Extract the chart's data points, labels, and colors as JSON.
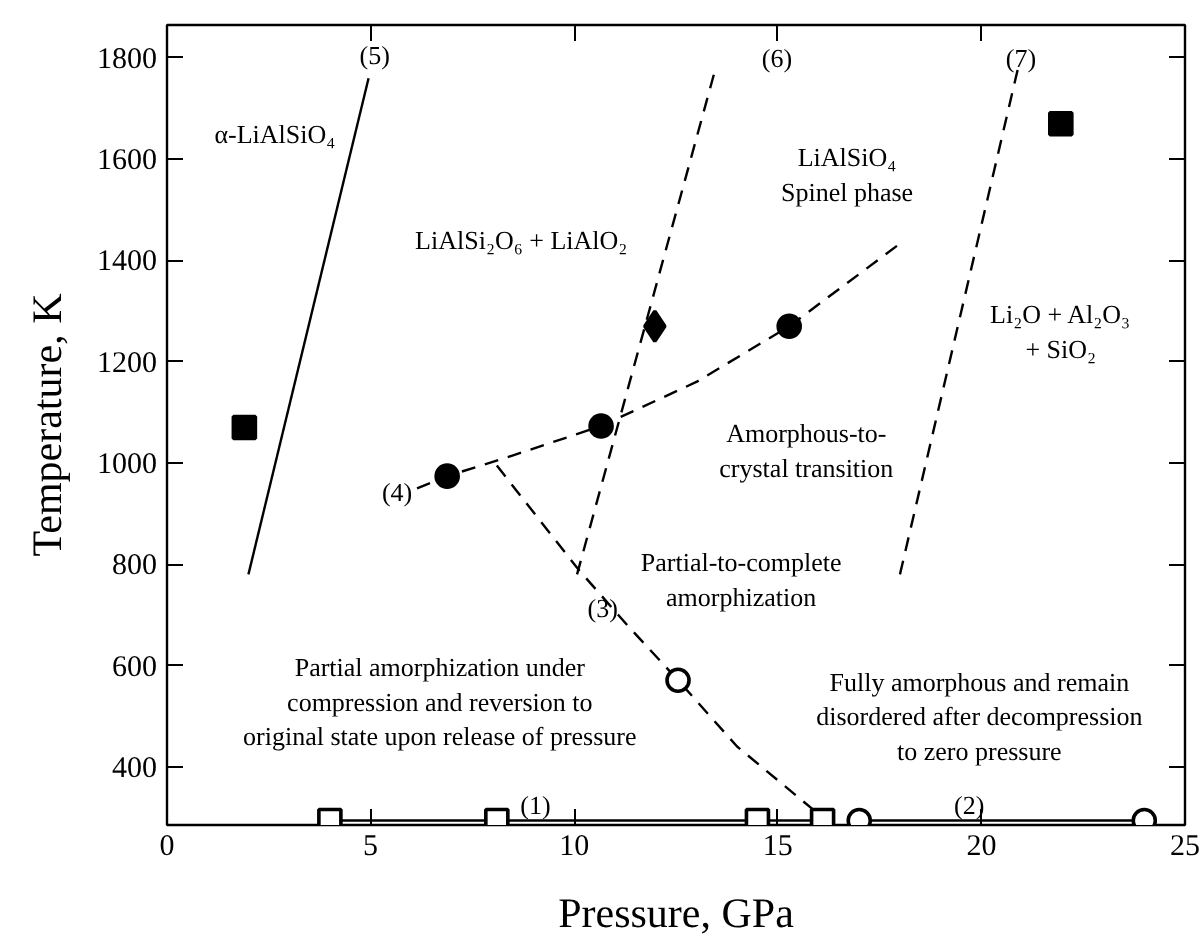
{
  "chart_data": {
    "type": "scatter",
    "xlabel": "Pressure, GPa",
    "ylabel": "Temperature, K",
    "xlim": [
      0,
      25
    ],
    "xticks": [
      0,
      5,
      10,
      15,
      20,
      25
    ],
    "ylim": [
      285,
      1865
    ],
    "yticks": [
      400,
      600,
      800,
      1000,
      1200,
      1400,
      1600,
      1800
    ],
    "grid": false,
    "series": [
      {
        "type": "line",
        "line_style": "solid",
        "color": "#000000",
        "marker": "none",
        "x": [
          2.0,
          4.95
        ],
        "values": [
          780,
          1760
        ]
      },
      {
        "type": "line",
        "line_style": "dashed",
        "color": "#000000",
        "marker": "none",
        "x": [
          10.07,
          13.46
        ],
        "values": [
          780,
          1776
        ]
      },
      {
        "type": "line",
        "line_style": "dashed",
        "color": "#000000",
        "marker": "none",
        "x": [
          18.0,
          20.9
        ],
        "values": [
          780,
          1780
        ]
      },
      {
        "type": "line",
        "line_style": "dashed",
        "color": "#000000",
        "marker": "none",
        "x": [
          6.14,
          6.88,
          8.5,
          10.66,
          13.0,
          15.28,
          17.98
        ],
        "values": [
          950,
          974,
          1015,
          1073,
          1160,
          1270,
          1432
        ]
      },
      {
        "type": "line",
        "line_style": "dashed",
        "color": "#000000",
        "marker": "none",
        "x": [
          8.1,
          10.1,
          11.3,
          12.55,
          14.0,
          16.1
        ],
        "values": [
          995,
          790,
          680,
          571,
          440,
          300
        ]
      },
      {
        "type": "line",
        "line_style": "solid",
        "color": "#000000",
        "marker": "none",
        "x": [
          4.0,
          16.1
        ],
        "values": [
          294,
          294
        ]
      },
      {
        "type": "line",
        "line_style": "solid",
        "color": "#000000",
        "marker": "none",
        "x": [
          17.0,
          24.0
        ],
        "values": [
          294,
          294
        ]
      },
      {
        "marker": "square",
        "color": "#000000",
        "x": [
          1.9,
          21.95
        ],
        "values": [
          1070,
          1670
        ]
      },
      {
        "marker": "diamond",
        "color": "#000000",
        "x": [
          11.98
        ],
        "values": [
          1270
        ]
      },
      {
        "marker": "circle",
        "color": "#000000",
        "x": [
          6.88,
          10.66,
          15.28
        ],
        "values": [
          974,
          1073,
          1270
        ]
      },
      {
        "marker": "circle",
        "color": "#ffffff",
        "x": [
          12.55,
          17.0,
          24.0
        ],
        "values": [
          571,
          294,
          294
        ]
      },
      {
        "marker": "square",
        "color": "#ffffff",
        "x": [
          4.0,
          8.1,
          14.5,
          16.1
        ],
        "values": [
          294,
          294,
          294,
          294
        ]
      }
    ],
    "annotations": [
      "(5)",
      "(6)",
      "(7)",
      "(4)",
      "(3)",
      "(1)",
      "(2)",
      "α-LiAlSiO₄",
      "LiAlSi₂O₆ + LiAlO₂",
      "LiAlSiO₄\nSpinel phase",
      "Li₂O + Al₂O₃\n+ SiO₂",
      "Amorphous-to-\ncrystal transition",
      "Partial-to-complete\namorphization",
      "Partial amorphization under\ncompression and reversion to\noriginal state upon release of pressure",
      "Fully amorphous and remain\ndisordered after decompression\nto zero pressure"
    ]
  }
}
